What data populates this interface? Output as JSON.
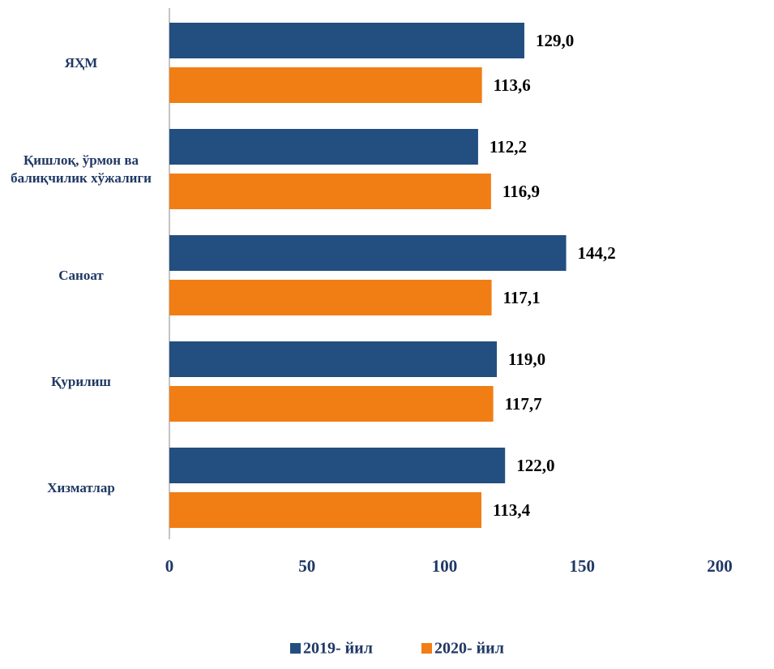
{
  "chart_data": {
    "type": "hbar",
    "categories": [
      "ЯҲМ",
      "Қишлоқ, ўрмон ва балиқчилик хўжалиги",
      "Саноат",
      "Қурилиш",
      "Хизматлар"
    ],
    "series": [
      {
        "name": "2019- йил",
        "color": "#234e80",
        "values": [
          129.0,
          112.2,
          144.2,
          119.0,
          122.0
        ],
        "value_labels": [
          "129,0",
          "112,2",
          "144,2",
          "119,0",
          "122,0"
        ]
      },
      {
        "name": "2020- йил",
        "color": "#f07e15",
        "values": [
          113.6,
          116.9,
          117.1,
          117.7,
          113.4
        ],
        "value_labels": [
          "113,6",
          "116,9",
          "117,1",
          "117,7",
          "113,4"
        ]
      }
    ],
    "xlim": [
      0,
      200
    ],
    "xticks": [
      0,
      50,
      100,
      150,
      200
    ],
    "legend": "bottom"
  }
}
